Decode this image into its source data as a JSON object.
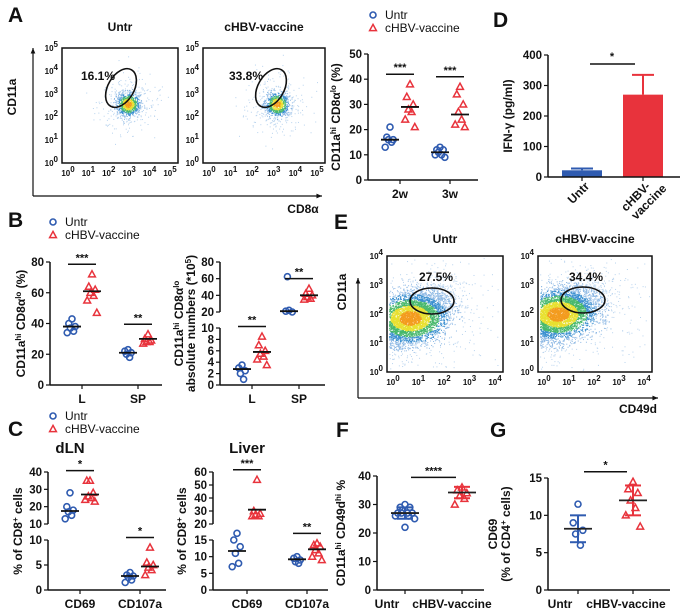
{
  "panel_letters": {
    "A": "A",
    "B": "B",
    "C": "C",
    "D": "D",
    "E": "E",
    "F": "F",
    "G": "G"
  },
  "legend": {
    "untr": "Untr",
    "vaccine": "cHBV-vaccine"
  },
  "colors": {
    "untr": "#2f5bb0",
    "vaccine": "#e8333c",
    "axis": "#111111"
  },
  "flow_A": {
    "x_axis": "CD8α",
    "y_axis": "CD11a",
    "tick_base": "10",
    "exponents": [
      0,
      1,
      2,
      3,
      4,
      5
    ],
    "plots": [
      {
        "title": "Untr",
        "gate": "16.1%"
      },
      {
        "title": "cHBV-vaccine",
        "gate": "33.8%"
      }
    ]
  },
  "flow_E": {
    "x_axis": "CD49d",
    "y_axis": "CD11a",
    "tick_base": "10",
    "exponents": [
      0,
      1,
      2,
      3,
      4
    ],
    "plots": [
      {
        "title": "Untr",
        "gate": "27.5%"
      },
      {
        "title": "cHBV-vaccine",
        "gate": "34.4%"
      }
    ]
  },
  "chart_data": [
    {
      "id": "A_dot",
      "type": "scatter",
      "ylabel": [
        {
          "text": "CD11a"
        },
        {
          "text": "hi",
          "sup": true
        },
        {
          "text": " CD8α"
        },
        {
          "text": "lo",
          "sup": true
        },
        {
          "text": " (%)"
        }
      ],
      "y_segments": [
        [
          0,
          50
        ]
      ],
      "yticks": [
        [
          0,
          10,
          20,
          30,
          40,
          50
        ]
      ],
      "categories": [
        {
          "label": "2w",
          "sig": "***",
          "groups": [
            {
              "series": "Untr",
              "values": [
                21,
                17,
                16,
                16,
                15,
                13
              ],
              "mean": 16
            },
            {
              "series": "cHBV-vaccine",
              "values": [
                38,
                33,
                30,
                28,
                27,
                24,
                21
              ],
              "mean": 29
            }
          ]
        },
        {
          "label": "3w",
          "sig": "***",
          "groups": [
            {
              "series": "Untr",
              "values": [
                13,
                12,
                12,
                11,
                10,
                10,
                9
              ],
              "mean": 11
            },
            {
              "series": "cHBV-vaccine",
              "values": [
                37,
                34,
                30,
                27,
                24,
                22,
                21
              ],
              "mean": 26
            }
          ]
        }
      ]
    },
    {
      "id": "D",
      "type": "bar",
      "ylabel": "IFN-γ (pg/ml)",
      "ylim": [
        0,
        400
      ],
      "yticks": [
        0,
        100,
        200,
        300,
        400
      ],
      "categories": [
        "Untr",
        "cHBV-vaccine"
      ],
      "values": [
        22,
        270
      ],
      "errors": [
        6,
        65
      ],
      "sig": "*"
    },
    {
      "id": "B1",
      "type": "scatter",
      "ylabel": [
        {
          "text": "CD11a"
        },
        {
          "text": "hi",
          "sup": true
        },
        {
          "text": " CD8α"
        },
        {
          "text": "lo",
          "sup": true
        },
        {
          "text": " (%)"
        }
      ],
      "y_segments": [
        [
          0,
          80
        ]
      ],
      "yticks": [
        [
          0,
          20,
          40,
          60,
          80
        ]
      ],
      "categories": [
        {
          "label": "L",
          "sig": "***",
          "groups": [
            {
              "series": "Untr",
              "values": [
                43,
                40,
                38,
                37,
                35,
                34
              ],
              "mean": 38
            },
            {
              "series": "cHBV-vaccine",
              "values": [
                72,
                64,
                62,
                60,
                58,
                55,
                47
              ],
              "mean": 61
            }
          ]
        },
        {
          "label": "SP",
          "sig": "**",
          "groups": [
            {
              "series": "Untr",
              "values": [
                23,
                22,
                21,
                20,
                18
              ],
              "mean": 21
            },
            {
              "series": "cHBV-vaccine",
              "values": [
                33,
                30,
                29,
                28,
                28,
                27
              ],
              "mean": 30
            }
          ]
        }
      ]
    },
    {
      "id": "B2",
      "type": "scatter",
      "ylabel": [
        {
          "text": "CD11a"
        },
        {
          "text": "hi",
          "sup": true
        },
        {
          "text": " CD8α"
        },
        {
          "text": "lo",
          "sup": true
        }
      ],
      "ylabel2": [
        {
          "text": "absolute numbers (*10"
        },
        {
          "text": "5",
          "sup": true
        },
        {
          "text": ")"
        }
      ],
      "y_segments": [
        [
          0,
          10
        ],
        [
          20,
          80
        ]
      ],
      "yticks": [
        [
          0,
          2,
          4,
          6,
          8,
          10
        ],
        [
          20,
          40,
          60,
          80
        ]
      ],
      "categories": [
        {
          "label": "L",
          "sig": "**",
          "groups": [
            {
              "series": "Untr",
              "values": [
                3.5,
                3,
                2.5,
                2,
                1
              ],
              "mean": 2.8
            },
            {
              "series": "cHBV-vaccine",
              "values": [
                8.5,
                7,
                6,
                5.5,
                5,
                4.5,
                3.5
              ],
              "mean": 5.8
            }
          ]
        },
        {
          "label": "SP",
          "sig": "**",
          "groups": [
            {
              "series": "Untr",
              "values": [
                22,
                21,
                20,
                19
              ],
              "mean": 21
            },
            {
              "series": "cHBV-vaccine",
              "values": [
                48,
                42,
                40,
                38,
                36,
                35
              ],
              "mean": 40
            }
          ]
        }
      ]
    },
    {
      "id": "C1",
      "type": "scatter",
      "title": "dLN",
      "ylabel": [
        {
          "text": "% of CD8"
        },
        {
          "text": "+",
          "sup": true
        },
        {
          "text": " cells"
        }
      ],
      "y_segments": [
        [
          0,
          10
        ],
        [
          10,
          40
        ]
      ],
      "yticks": [
        [
          0,
          5,
          10
        ],
        [
          10,
          20,
          30,
          40
        ]
      ],
      "categories": [
        {
          "label": "CD69",
          "sig": "*",
          "groups": [
            {
              "series": "Untr",
              "values": [
                28,
                20,
                18,
                17,
                15,
                13
              ],
              "mean": 17.5
            },
            {
              "series": "cHBV-vaccine",
              "values": [
                35,
                35,
                28,
                26,
                25,
                24,
                23
              ],
              "mean": 27
            }
          ]
        },
        {
          "label": "CD107a",
          "sig": "*",
          "groups": [
            {
              "series": "Untr",
              "values": [
                3.5,
                3,
                2.8,
                2.5,
                2,
                1.5
              ],
              "mean": 2.8
            },
            {
              "series": "cHBV-vaccine",
              "values": [
                8.5,
                5.5,
                5,
                4.5,
                4,
                3
              ],
              "mean": 4.7
            }
          ]
        }
      ]
    },
    {
      "id": "C2",
      "type": "scatter",
      "title": "Liver",
      "ylabel": [
        {
          "text": "% of CD8"
        },
        {
          "text": "+",
          "sup": true
        },
        {
          "text": " cells"
        }
      ],
      "y_segments": [
        [
          0,
          15
        ],
        [
          20,
          60
        ]
      ],
      "yticks": [
        [
          0,
          5,
          10,
          15
        ],
        [
          20,
          30,
          40,
          50,
          60
        ]
      ],
      "categories": [
        {
          "label": "CD69",
          "sig": "***",
          "groups": [
            {
              "series": "Untr",
              "values": [
                17,
                15,
                13,
                11,
                8,
                7
              ],
              "mean": 11.7
            },
            {
              "series": "cHBV-vaccine",
              "values": [
                54,
                30,
                28,
                27,
                26,
                26
              ],
              "mean": 31
            }
          ]
        },
        {
          "label": "CD107a",
          "sig": "**",
          "groups": [
            {
              "series": "Untr",
              "values": [
                10,
                9.5,
                9,
                8.5,
                8
              ],
              "mean": 9.2
            },
            {
              "series": "cHBV-vaccine",
              "values": [
                14,
                13.5,
                13,
                12,
                11,
                10,
                9
              ],
              "mean": 12.2
            }
          ]
        }
      ]
    },
    {
      "id": "F",
      "type": "scatter",
      "sig": "****",
      "ylabel": [
        {
          "text": "CD11a"
        },
        {
          "text": "hi",
          "sup": true
        },
        {
          "text": " CD49d"
        },
        {
          "text": "hi",
          "sup": true
        },
        {
          "text": " %"
        }
      ],
      "y_segments": [
        [
          0,
          40
        ]
      ],
      "yticks": [
        [
          0,
          10,
          20,
          30,
          40
        ]
      ],
      "categories": [
        {
          "label": "Untr",
          "groups": [
            {
              "series": "Untr",
              "values": [
                30,
                29,
                29,
                28,
                27,
                27,
                27,
                27,
                26,
                26,
                25,
                22
              ],
              "mean": 27,
              "sd": 2
            }
          ]
        },
        {
          "label": "cHBV-vaccine",
          "groups": [
            {
              "series": "cHBV-vaccine",
              "values": [
                36,
                35,
                34,
                33,
                32,
                30
              ],
              "mean": 34.2,
              "sd": 2
            }
          ]
        }
      ]
    },
    {
      "id": "G",
      "type": "scatter",
      "sig": "*",
      "ylabel": [
        {
          "text": "CD69"
        }
      ],
      "ylabel2": [
        {
          "text": "(% of CD4"
        },
        {
          "text": "+",
          "sup": true
        },
        {
          "text": " cells)"
        }
      ],
      "y_segments": [
        [
          0,
          15
        ]
      ],
      "yticks": [
        [
          0,
          5,
          10,
          15
        ]
      ],
      "categories": [
        {
          "label": "Untr",
          "groups": [
            {
              "series": "Untr",
              "values": [
                11.5,
                9,
                8,
                7.5,
                6
              ],
              "mean": 8.2,
              "sd": 1.8
            }
          ]
        },
        {
          "label": "cHBV-vaccine",
          "groups": [
            {
              "series": "cHBV-vaccine",
              "values": [
                14.5,
                13.5,
                13,
                12,
                11,
                10,
                8.5
              ],
              "mean": 12,
              "sd": 2
            }
          ]
        }
      ]
    }
  ]
}
